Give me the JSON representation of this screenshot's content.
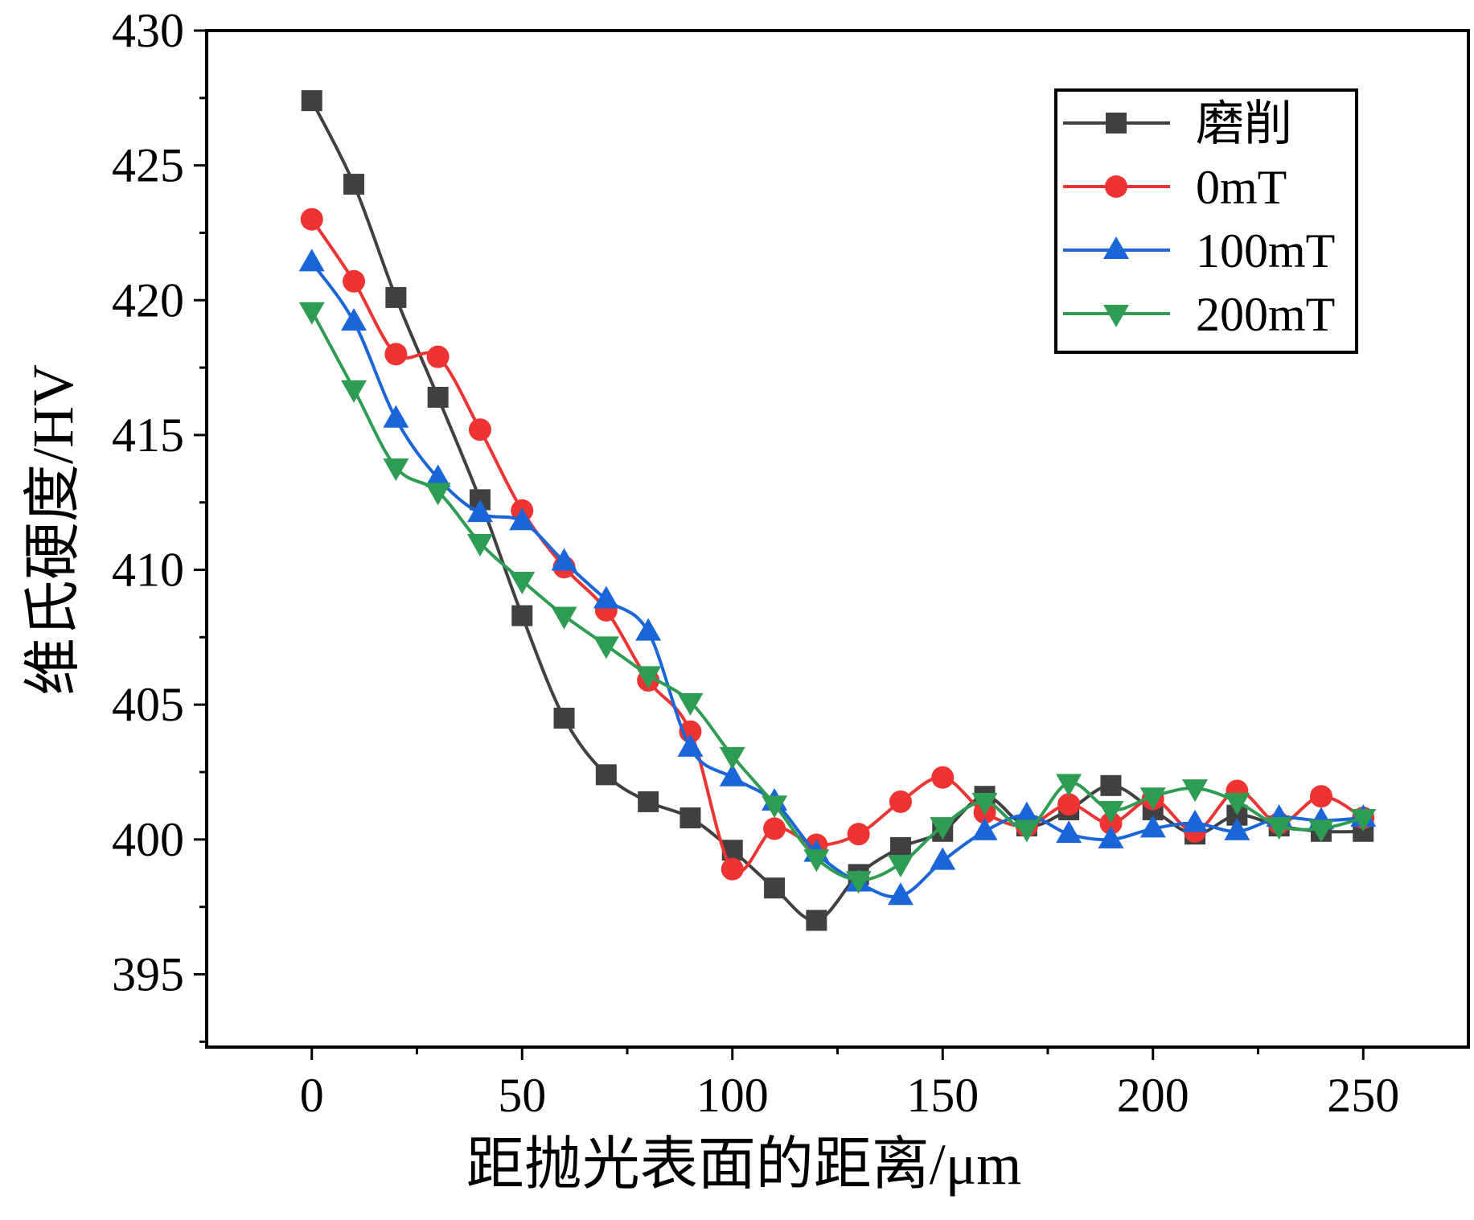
{
  "chart_data": {
    "type": "line",
    "title": "",
    "xlabel": "距抛光表面的距离/μm",
    "ylabel": "维氏硬度/HV",
    "xlim": [
      -25,
      275
    ],
    "ylim": [
      392.3,
      430
    ],
    "x_ticks": [
      0,
      50,
      100,
      150,
      200,
      250
    ],
    "y_ticks": [
      395,
      400,
      405,
      410,
      415,
      420,
      425,
      430
    ],
    "grid": false,
    "legend_position": "top-right",
    "x": [
      0,
      10,
      20,
      30,
      40,
      50,
      60,
      70,
      80,
      90,
      100,
      110,
      120,
      130,
      140,
      150,
      160,
      170,
      180,
      190,
      200,
      210,
      220,
      230,
      240,
      250
    ],
    "series": [
      {
        "name": "磨削",
        "color": "#404040",
        "marker": "square",
        "values": [
          427.4,
          424.3,
          420.1,
          416.4,
          412.6,
          408.3,
          404.5,
          402.4,
          401.4,
          400.8,
          399.6,
          398.2,
          397.0,
          398.7,
          399.7,
          400.3,
          401.6,
          400.5,
          401.1,
          402.0,
          401.1,
          400.2,
          400.9,
          400.5,
          400.3,
          400.3
        ]
      },
      {
        "name": "0mT",
        "color": "#ee3333",
        "marker": "circle",
        "values": [
          423.0,
          420.7,
          418.0,
          417.9,
          415.2,
          412.2,
          410.1,
          408.5,
          405.9,
          404.0,
          398.9,
          400.4,
          399.8,
          400.2,
          401.4,
          402.3,
          401.0,
          400.5,
          401.3,
          400.6,
          401.5,
          400.3,
          401.8,
          400.6,
          401.6,
          400.8
        ]
      },
      {
        "name": "100mT",
        "color": "#1a66d9",
        "marker": "triangle-up",
        "values": [
          421.4,
          419.2,
          415.6,
          413.4,
          412.1,
          411.8,
          410.3,
          408.9,
          407.7,
          403.4,
          402.3,
          401.4,
          399.5,
          398.4,
          397.9,
          399.2,
          400.3,
          400.9,
          400.2,
          400.0,
          400.4,
          400.6,
          400.3,
          400.8,
          400.7,
          400.8
        ]
      },
      {
        "name": "200mT",
        "color": "#2e9c52",
        "marker": "triangle-down",
        "values": [
          419.6,
          416.7,
          413.8,
          412.9,
          411.0,
          409.6,
          408.3,
          407.2,
          406.1,
          405.1,
          403.1,
          401.3,
          399.3,
          398.5,
          399.1,
          400.5,
          401.4,
          400.4,
          402.1,
          401.1,
          401.6,
          401.9,
          401.4,
          400.5,
          400.4,
          400.8
        ]
      }
    ]
  }
}
